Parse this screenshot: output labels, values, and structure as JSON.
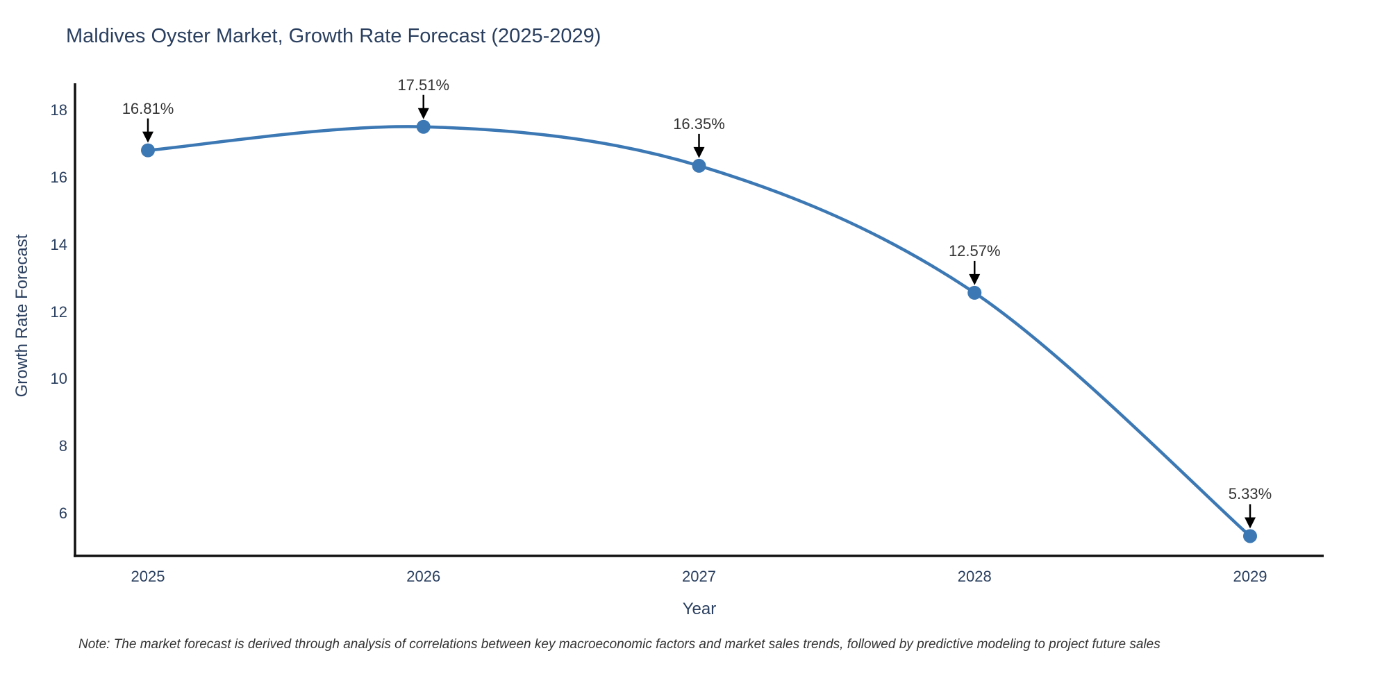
{
  "note": "Note: The market forecast is derived through analysis of correlations between key macroeconomic factors and market sales trends, followed by predictive modeling to project future sales",
  "colors": {
    "accent": "#3c78b4",
    "axis_line": "#111111",
    "arrow": "#000000",
    "axis_text": "#2a3f5f",
    "annotation_text": "#333333",
    "background": "#ffffff"
  },
  "chart_data": {
    "type": "line",
    "title": "Maldives Oyster Market, Growth Rate Forecast (2025-2029)",
    "xlabel": "Year",
    "ylabel": "Growth Rate Forecast",
    "categories": [
      "2025",
      "2026",
      "2027",
      "2028",
      "2029"
    ],
    "values": [
      16.81,
      17.51,
      16.35,
      12.57,
      5.33
    ],
    "point_labels": [
      "16.81%",
      "17.51%",
      "16.35%",
      "12.57%",
      "5.33%"
    ],
    "y_ticks": [
      6,
      8,
      10,
      12,
      14,
      16,
      18
    ],
    "ylim": [
      4.8,
      18.35
    ],
    "grid": false,
    "legend": false,
    "line_shape": "spline",
    "marker": "circle",
    "annotations": "arrow-down-to-point"
  }
}
